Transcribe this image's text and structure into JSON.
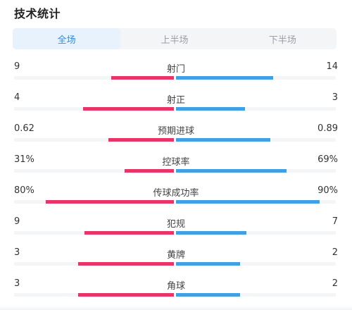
{
  "title": "技术统计",
  "tabs": [
    {
      "label": "全场",
      "active": true
    },
    {
      "label": "上半场",
      "active": false
    },
    {
      "label": "下半场",
      "active": false
    }
  ],
  "colors": {
    "home": "#e83467",
    "away": "#3fa0e6",
    "accent": "#2a8be8"
  },
  "stats": [
    {
      "name": "射门",
      "home": "9",
      "away": "14",
      "home_ratio": 0.39,
      "away_ratio": 0.61
    },
    {
      "name": "射正",
      "home": "4",
      "away": "3",
      "home_ratio": 0.57,
      "away_ratio": 0.43
    },
    {
      "name": "预期进球",
      "home": "0.62",
      "away": "0.89",
      "home_ratio": 0.41,
      "away_ratio": 0.59
    },
    {
      "name": "控球率",
      "home": "31%",
      "away": "69%",
      "home_ratio": 0.31,
      "away_ratio": 0.69
    },
    {
      "name": "传球成功率",
      "home": "80%",
      "away": "90%",
      "home_ratio": 0.8,
      "away_ratio": 0.9
    },
    {
      "name": "犯规",
      "home": "9",
      "away": "7",
      "home_ratio": 0.56,
      "away_ratio": 0.44
    },
    {
      "name": "黄牌",
      "home": "3",
      "away": "2",
      "home_ratio": 0.6,
      "away_ratio": 0.4
    },
    {
      "name": "角球",
      "home": "3",
      "away": "2",
      "home_ratio": 0.6,
      "away_ratio": 0.4
    }
  ]
}
